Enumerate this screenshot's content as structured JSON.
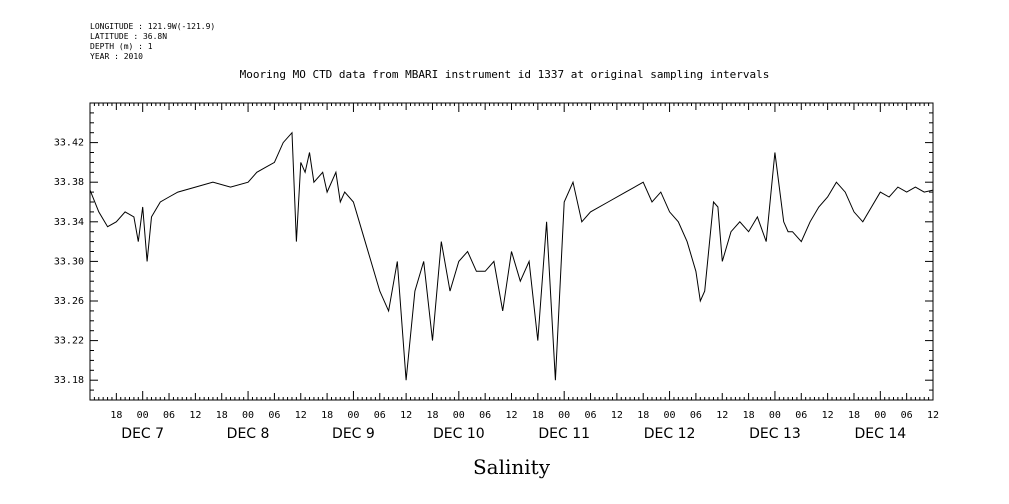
{
  "meta": {
    "longitude": "LONGITUDE : 121.9W(-121.9)",
    "latitude": "LATITUDE : 36.8N",
    "depth": "DEPTH (m) : 1",
    "year": "YEAR : 2010"
  },
  "chart_data": {
    "type": "line",
    "title": "Mooring MO CTD data from MBARI instrument id 1337 at original sampling intervals",
    "xlabel": "Salinity",
    "ylabel": "",
    "xlim": [
      "2010-12-06T12:00",
      "2010-12-14T12:00"
    ],
    "ylim": [
      33.16,
      33.46
    ],
    "y_ticks": [
      "33.18",
      "33.22",
      "33.26",
      "33.30",
      "33.34",
      "33.38",
      "33.42"
    ],
    "x_hour_ticks": [
      {
        "t": "2010-12-06T18:00",
        "label": "18"
      },
      {
        "t": "2010-12-07T00:00",
        "label": "00"
      },
      {
        "t": "2010-12-07T06:00",
        "label": "06"
      },
      {
        "t": "2010-12-07T12:00",
        "label": "12"
      },
      {
        "t": "2010-12-07T18:00",
        "label": "18"
      },
      {
        "t": "2010-12-08T00:00",
        "label": "00"
      },
      {
        "t": "2010-12-08T06:00",
        "label": "06"
      },
      {
        "t": "2010-12-08T12:00",
        "label": "12"
      },
      {
        "t": "2010-12-08T18:00",
        "label": "18"
      },
      {
        "t": "2010-12-09T00:00",
        "label": "00"
      },
      {
        "t": "2010-12-09T06:00",
        "label": "06"
      },
      {
        "t": "2010-12-09T12:00",
        "label": "12"
      },
      {
        "t": "2010-12-09T18:00",
        "label": "18"
      },
      {
        "t": "2010-12-10T00:00",
        "label": "00"
      },
      {
        "t": "2010-12-10T06:00",
        "label": "06"
      },
      {
        "t": "2010-12-10T12:00",
        "label": "12"
      },
      {
        "t": "2010-12-10T18:00",
        "label": "18"
      },
      {
        "t": "2010-12-11T00:00",
        "label": "00"
      },
      {
        "t": "2010-12-11T06:00",
        "label": "06"
      },
      {
        "t": "2010-12-11T12:00",
        "label": "12"
      },
      {
        "t": "2010-12-11T18:00",
        "label": "18"
      },
      {
        "t": "2010-12-12T00:00",
        "label": "00"
      },
      {
        "t": "2010-12-12T06:00",
        "label": "06"
      },
      {
        "t": "2010-12-12T12:00",
        "label": "12"
      },
      {
        "t": "2010-12-12T18:00",
        "label": "18"
      },
      {
        "t": "2010-12-13T00:00",
        "label": "00"
      },
      {
        "t": "2010-12-13T06:00",
        "label": "06"
      },
      {
        "t": "2010-12-13T12:00",
        "label": "12"
      },
      {
        "t": "2010-12-13T18:00",
        "label": "18"
      },
      {
        "t": "2010-12-14T00:00",
        "label": "00"
      },
      {
        "t": "2010-12-14T06:00",
        "label": "06"
      },
      {
        "t": "2010-12-14T12:00",
        "label": "12"
      }
    ],
    "x_day_labels": [
      {
        "t": "2010-12-07T00:00",
        "label": "DEC 7"
      },
      {
        "t": "2010-12-08T00:00",
        "label": "DEC 8"
      },
      {
        "t": "2010-12-09T00:00",
        "label": "DEC 9"
      },
      {
        "t": "2010-12-10T00:00",
        "label": "DEC 10"
      },
      {
        "t": "2010-12-11T00:00",
        "label": "DEC 11"
      },
      {
        "t": "2010-12-12T00:00",
        "label": "DEC 12"
      },
      {
        "t": "2010-12-13T00:00",
        "label": "DEC 13"
      },
      {
        "t": "2010-12-14T00:00",
        "label": "DEC 14"
      }
    ],
    "series": [
      {
        "x": [
          "2010-12-06T12:00",
          "2010-12-06T14:00",
          "2010-12-06T16:00",
          "2010-12-06T18:00",
          "2010-12-06T20:00",
          "2010-12-06T22:00",
          "2010-12-06T23:00",
          "2010-12-07T00:00",
          "2010-12-07T01:00",
          "2010-12-07T02:00",
          "2010-12-07T04:00",
          "2010-12-07T06:00",
          "2010-12-07T08:00",
          "2010-12-07T12:00",
          "2010-12-07T16:00",
          "2010-12-07T20:00",
          "2010-12-08T00:00",
          "2010-12-08T02:00",
          "2010-12-08T04:00",
          "2010-12-08T06:00",
          "2010-12-08T08:00",
          "2010-12-08T10:00",
          "2010-12-08T11:00",
          "2010-12-08T12:00",
          "2010-12-08T13:00",
          "2010-12-08T14:00",
          "2010-12-08T15:00",
          "2010-12-08T17:00",
          "2010-12-08T18:00",
          "2010-12-08T20:00",
          "2010-12-08T21:00",
          "2010-12-08T22:00",
          "2010-12-09T00:00",
          "2010-12-09T02:00",
          "2010-12-09T04:00",
          "2010-12-09T06:00",
          "2010-12-09T08:00",
          "2010-12-09T10:00",
          "2010-12-09T12:00",
          "2010-12-09T14:00",
          "2010-12-09T16:00",
          "2010-12-09T18:00",
          "2010-12-09T20:00",
          "2010-12-09T22:00",
          "2010-12-10T00:00",
          "2010-12-10T02:00",
          "2010-12-10T04:00",
          "2010-12-10T06:00",
          "2010-12-10T08:00",
          "2010-12-10T10:00",
          "2010-12-10T12:00",
          "2010-12-10T14:00",
          "2010-12-10T16:00",
          "2010-12-10T18:00",
          "2010-12-10T20:00",
          "2010-12-10T22:00",
          "2010-12-11T00:00",
          "2010-12-11T02:00",
          "2010-12-11T04:00",
          "2010-12-11T06:00",
          "2010-12-11T10:00",
          "2010-12-11T14:00",
          "2010-12-11T18:00",
          "2010-12-11T20:00",
          "2010-12-11T22:00",
          "2010-12-12T00:00",
          "2010-12-12T02:00",
          "2010-12-12T04:00",
          "2010-12-12T06:00",
          "2010-12-12T07:00",
          "2010-12-12T08:00",
          "2010-12-12T10:00",
          "2010-12-12T11:00",
          "2010-12-12T12:00",
          "2010-12-12T14:00",
          "2010-12-12T16:00",
          "2010-12-12T18:00",
          "2010-12-12T20:00",
          "2010-12-12T22:00",
          "2010-12-13T00:00",
          "2010-12-13T02:00",
          "2010-12-13T03:00",
          "2010-12-13T04:00",
          "2010-12-13T06:00",
          "2010-12-13T08:00",
          "2010-12-13T10:00",
          "2010-12-13T12:00",
          "2010-12-13T14:00",
          "2010-12-13T16:00",
          "2010-12-13T18:00",
          "2010-12-13T20:00",
          "2010-12-13T22:00",
          "2010-12-14T00:00",
          "2010-12-14T02:00",
          "2010-12-14T04:00",
          "2010-12-14T06:00",
          "2010-12-14T08:00",
          "2010-12-14T10:00",
          "2010-12-14T12:00"
        ],
        "y": [
          33.372,
          33.35,
          33.335,
          33.34,
          33.35,
          33.345,
          33.32,
          33.355,
          33.3,
          33.345,
          33.36,
          33.365,
          33.37,
          33.375,
          33.38,
          33.375,
          33.38,
          33.39,
          33.395,
          33.4,
          33.42,
          33.43,
          33.32,
          33.4,
          33.39,
          33.41,
          33.38,
          33.39,
          33.37,
          33.39,
          33.36,
          33.37,
          33.36,
          33.33,
          33.3,
          33.27,
          33.25,
          33.3,
          33.18,
          33.27,
          33.3,
          33.22,
          33.32,
          33.27,
          33.3,
          33.31,
          33.29,
          33.29,
          33.3,
          33.25,
          33.31,
          33.28,
          33.3,
          33.22,
          33.34,
          33.18,
          33.36,
          33.38,
          33.34,
          33.35,
          33.36,
          33.37,
          33.38,
          33.36,
          33.37,
          33.35,
          33.34,
          33.32,
          33.29,
          33.26,
          33.27,
          33.36,
          33.355,
          33.3,
          33.33,
          33.34,
          33.33,
          33.345,
          33.32,
          33.41,
          33.34,
          33.33,
          33.33,
          33.32,
          33.34,
          33.355,
          33.365,
          33.38,
          33.37,
          33.35,
          33.34,
          33.355,
          33.37,
          33.365,
          33.375,
          33.37,
          33.375,
          33.37,
          33.372
        ]
      }
    ]
  }
}
